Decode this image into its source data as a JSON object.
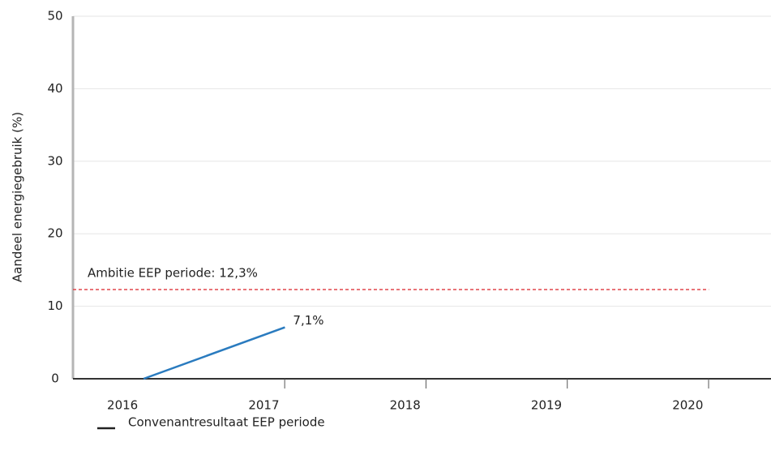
{
  "chart_data": {
    "type": "line",
    "y_label": "Aandeel energiegebruik (%)",
    "x": [
      2016,
      2017
    ],
    "series": [
      {
        "name": "Convenantresultaat EEP periode",
        "color": "#2a7bbf",
        "values": [
          0,
          7.1
        ],
        "value_labels": [
          null,
          "7,1%"
        ]
      }
    ],
    "xlim": [
      2015.5,
      2020.44
    ],
    "xticks": [
      2016,
      2017,
      2018,
      2019,
      2020
    ],
    "ylim": [
      0,
      50
    ],
    "yticks": [
      0,
      10,
      20,
      30,
      40,
      50
    ],
    "grid": true,
    "reference_line": {
      "value": 12.3,
      "label": "Ambitie EEP periode: 12,3%",
      "color": "#e0474c"
    }
  }
}
